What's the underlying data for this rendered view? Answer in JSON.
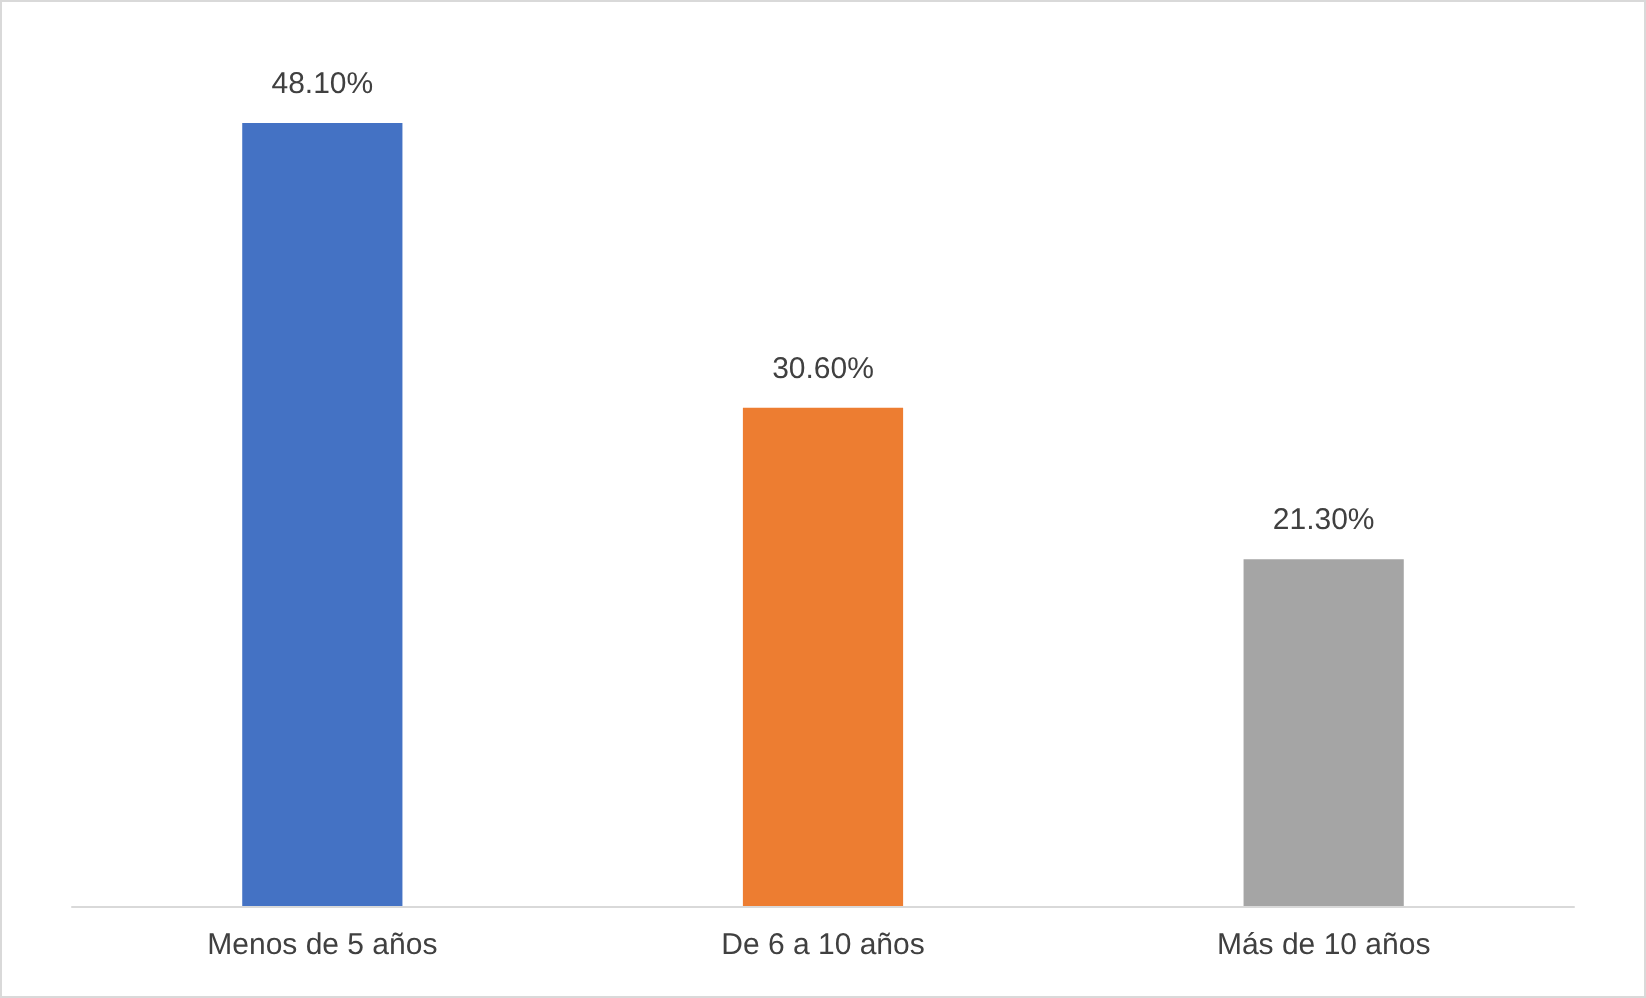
{
  "chart_data": {
    "type": "bar",
    "categories": [
      "Menos de 5 años",
      "De 6 a 10 años",
      "Más de 10 años"
    ],
    "values": [
      48.1,
      30.6,
      21.3
    ],
    "colors": [
      "#4472c4",
      "#ed7d31",
      "#a5a5a5"
    ],
    "value_labels": [
      "48.10%",
      "30.60%",
      "21.30%"
    ]
  }
}
